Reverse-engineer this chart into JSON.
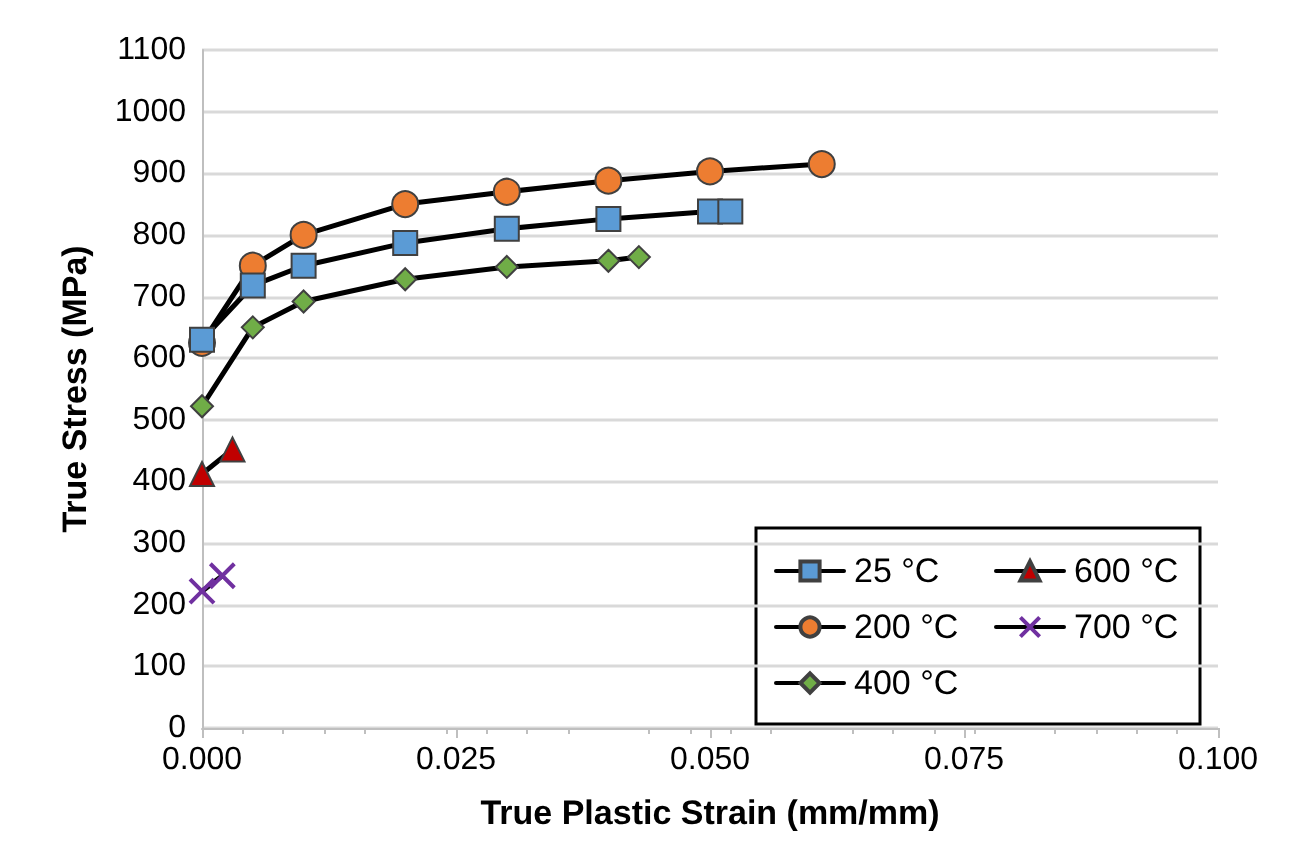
{
  "chart_data": {
    "type": "line",
    "xlabel": "True Plastic Strain (mm/mm)",
    "ylabel": "True Stress (MPa)",
    "xlim": [
      0,
      0.1
    ],
    "xticks": [
      {
        "value": 0,
        "label": "0.000"
      },
      {
        "value": 0.025,
        "label": "0.025"
      },
      {
        "value": 0.05,
        "label": "0.050"
      },
      {
        "value": 0.075,
        "label": "0.075"
      },
      {
        "value": 0.1,
        "label": "0.100"
      }
    ],
    "ylim": [
      0,
      1100
    ],
    "yticks": [
      0,
      100,
      200,
      300,
      400,
      500,
      600,
      700,
      800,
      900,
      1000,
      1100
    ],
    "grid": "y",
    "legend": "bottom right",
    "series": [
      {
        "name": "25 °C",
        "color": "#5b9bd5",
        "marker": "square",
        "x": [
          0,
          0.005,
          0.01,
          0.02,
          0.03,
          0.04,
          0.05,
          0.052
        ],
        "values": [
          630,
          718,
          750,
          787,
          810,
          826,
          838,
          838
        ]
      },
      {
        "name": "200 °C",
        "color": "#ed7d31",
        "marker": "circle",
        "x": [
          0,
          0.005,
          0.01,
          0.02,
          0.03,
          0.04,
          0.05,
          0.061
        ],
        "values": [
          625,
          750,
          800,
          850,
          870,
          888,
          903,
          915
        ]
      },
      {
        "name": "400 °C",
        "color": "#70ad47",
        "marker": "diamond",
        "x": [
          0,
          0.005,
          0.01,
          0.02,
          0.03,
          0.04,
          0.043
        ],
        "values": [
          522,
          650,
          692,
          728,
          748,
          758,
          764
        ]
      },
      {
        "name": "600 °C",
        "color": "#c00000",
        "marker": "triangle",
        "x": [
          0,
          0.003
        ],
        "values": [
          412,
          452
        ]
      },
      {
        "name": "700 °C",
        "color": "#7030a0",
        "marker": "cross",
        "x": [
          0,
          0.002
        ],
        "values": [
          222,
          247
        ]
      }
    ]
  }
}
